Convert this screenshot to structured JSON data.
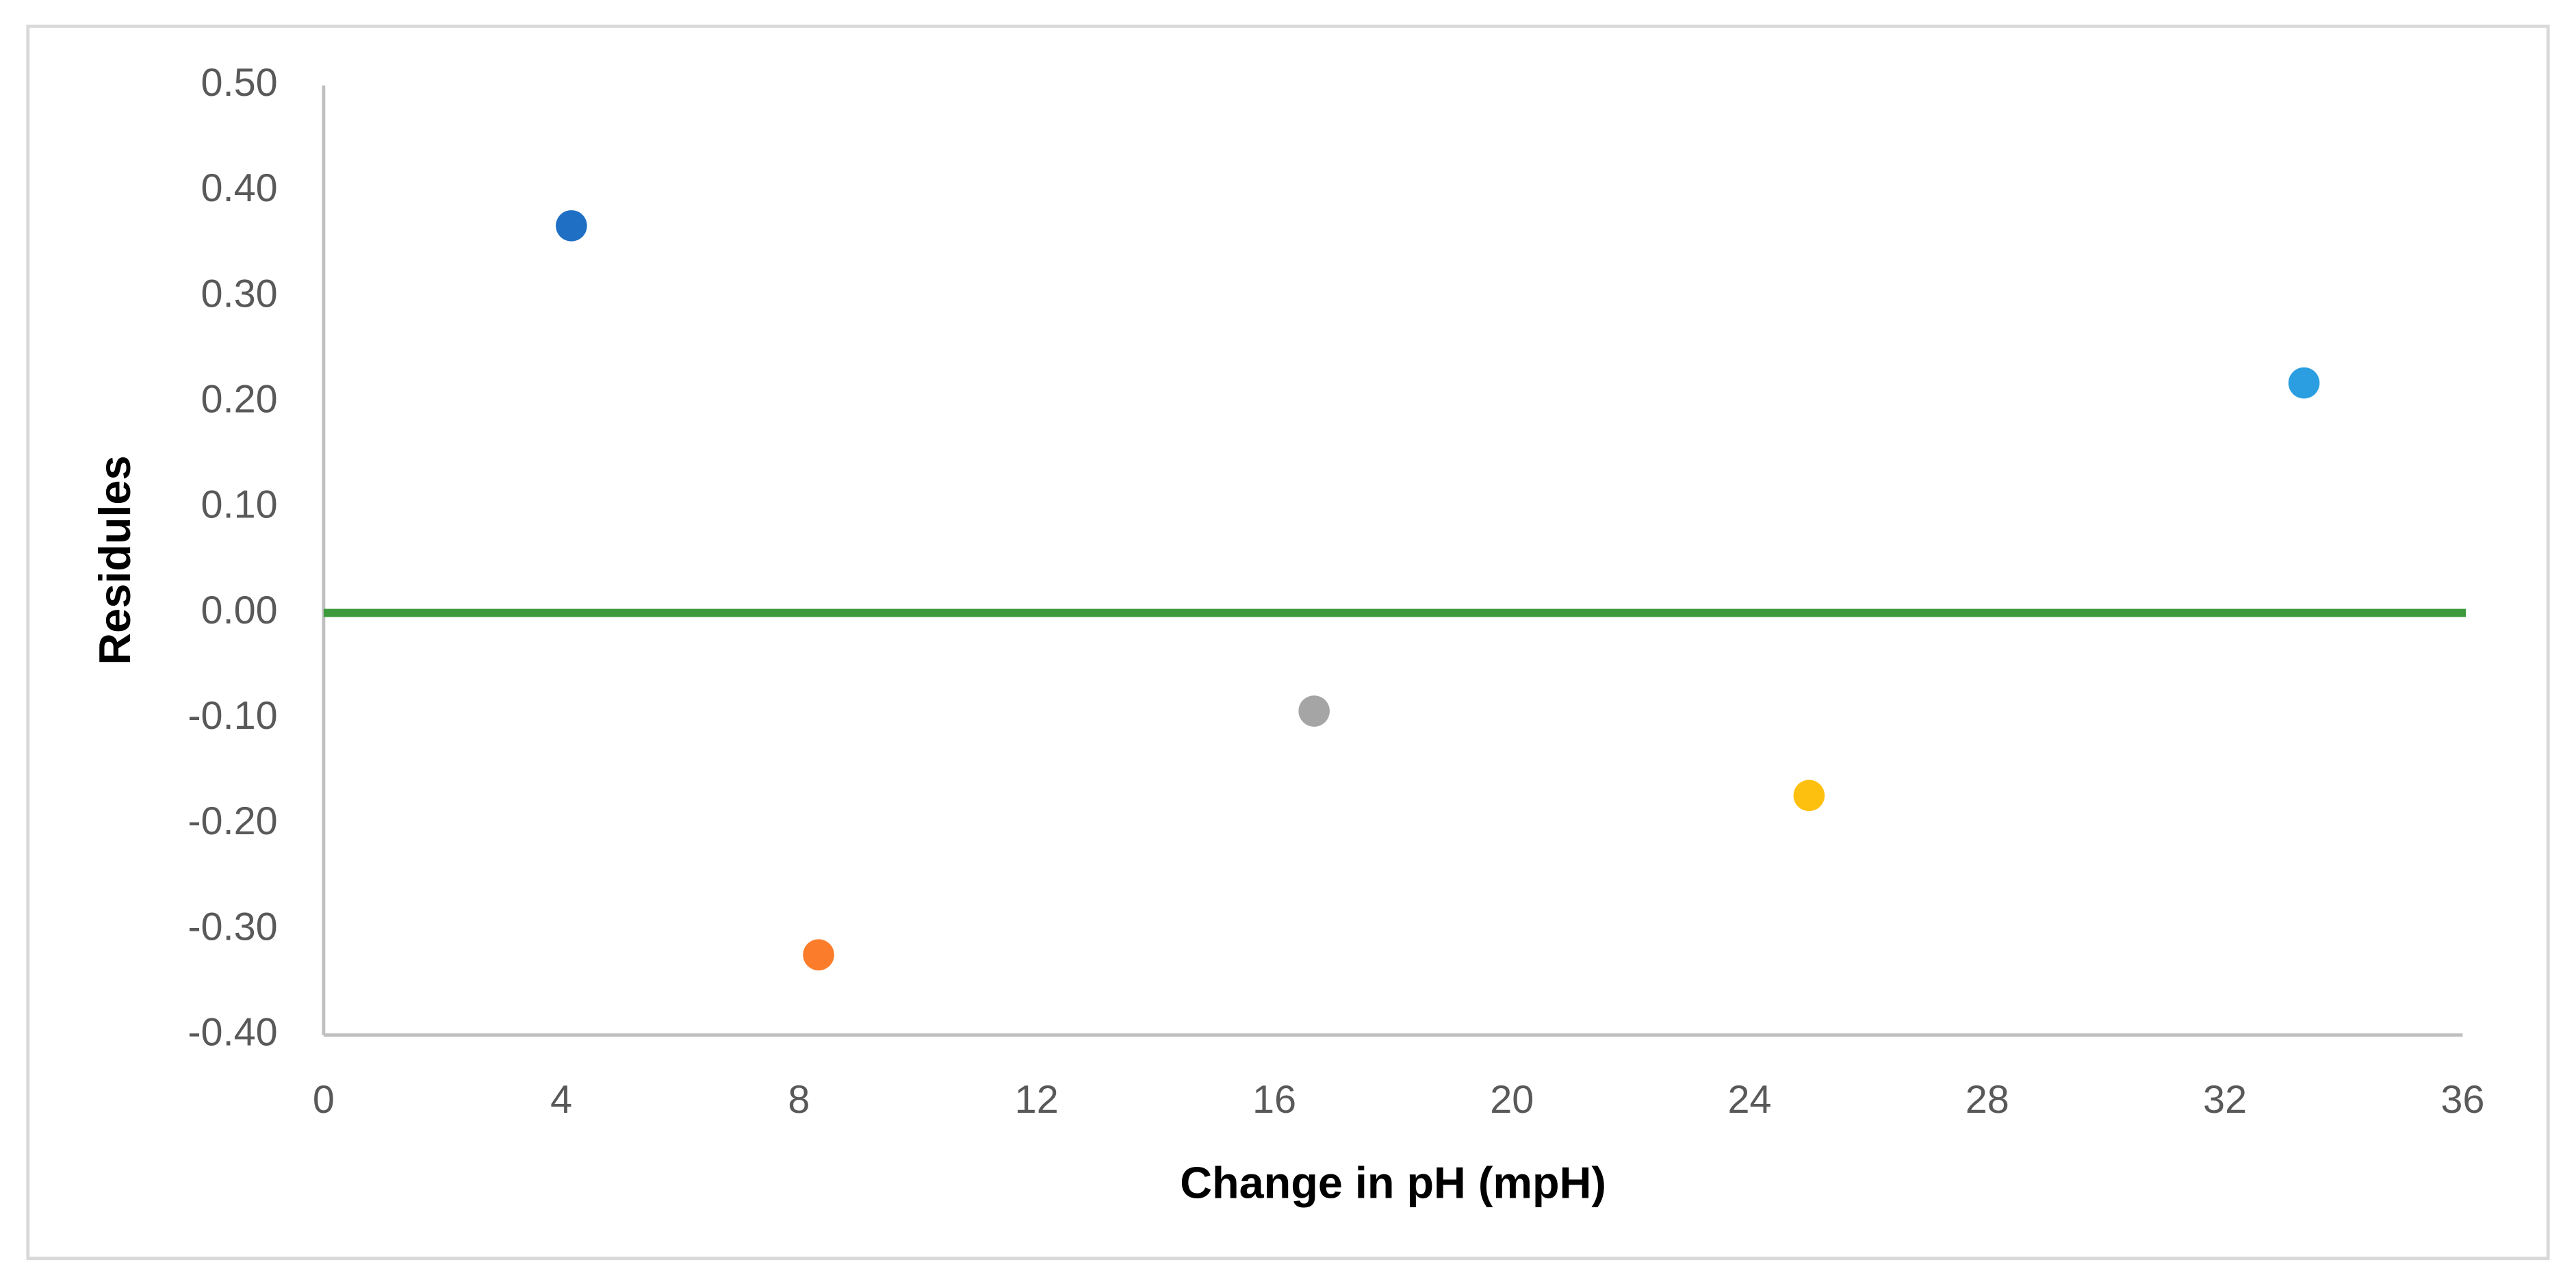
{
  "chart_data": {
    "type": "scatter",
    "x_label": "Change in pH (mpH)",
    "y_label": "Residules",
    "x": [
      4.17,
      8.33,
      16.67,
      25,
      33.33
    ],
    "values": [
      0.367,
      -0.324,
      -0.093,
      -0.173,
      0.218
    ],
    "colors": [
      "#1f6fc5",
      "#fb7d2b",
      "#a5a5a5",
      "#fec00f",
      "#2a9ee0"
    ],
    "reference_line": {
      "y": 0,
      "color": "#3c9a3c"
    },
    "xlim": [
      0,
      36
    ],
    "xticks": [
      0,
      4,
      8,
      12,
      16,
      20,
      24,
      28,
      32,
      36
    ],
    "ylim": [
      -0.4,
      0.5
    ],
    "yticks": [
      {
        "value": -0.4,
        "label": "-0.40"
      },
      {
        "value": -0.3,
        "label": "-0.30"
      },
      {
        "value": -0.2,
        "label": "-0.20"
      },
      {
        "value": -0.1,
        "label": "-0.10"
      },
      {
        "value": 0,
        "label": "0.00"
      },
      {
        "value": 0.1,
        "label": "0.10"
      },
      {
        "value": 0.2,
        "label": "0.20"
      },
      {
        "value": 0.3,
        "label": "0.30"
      },
      {
        "value": 0.4,
        "label": "0.40"
      },
      {
        "value": 0.5,
        "label": "0.50"
      }
    ],
    "grid": false
  }
}
